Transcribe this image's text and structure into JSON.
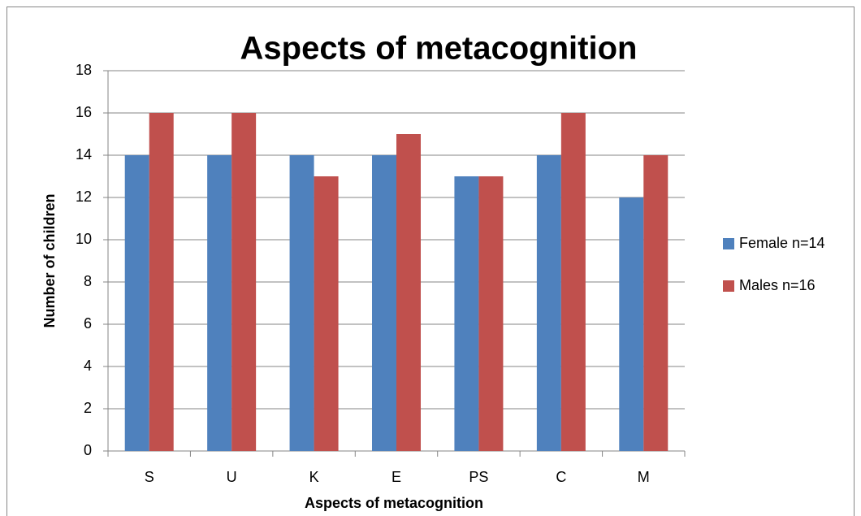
{
  "chart_data": {
    "type": "bar",
    "title": "Aspects of metacognition",
    "x_label": "Aspects of metacognition",
    "y_label": "Number of children",
    "categories": [
      "S",
      "U",
      "K",
      "E",
      "PS",
      "C",
      "M"
    ],
    "series": [
      {
        "name": "Female n=14",
        "color": "#4f81bd",
        "values": [
          14,
          14,
          14,
          14,
          13,
          14,
          12
        ]
      },
      {
        "name": "Males n=16",
        "color": "#c0504d",
        "values": [
          16,
          16,
          13,
          15,
          13,
          16,
          14
        ]
      }
    ],
    "ylim": [
      0,
      18
    ],
    "yticks": [
      0,
      2,
      4,
      6,
      8,
      10,
      12,
      14,
      16,
      18
    ],
    "grid": true,
    "legend": "right"
  }
}
